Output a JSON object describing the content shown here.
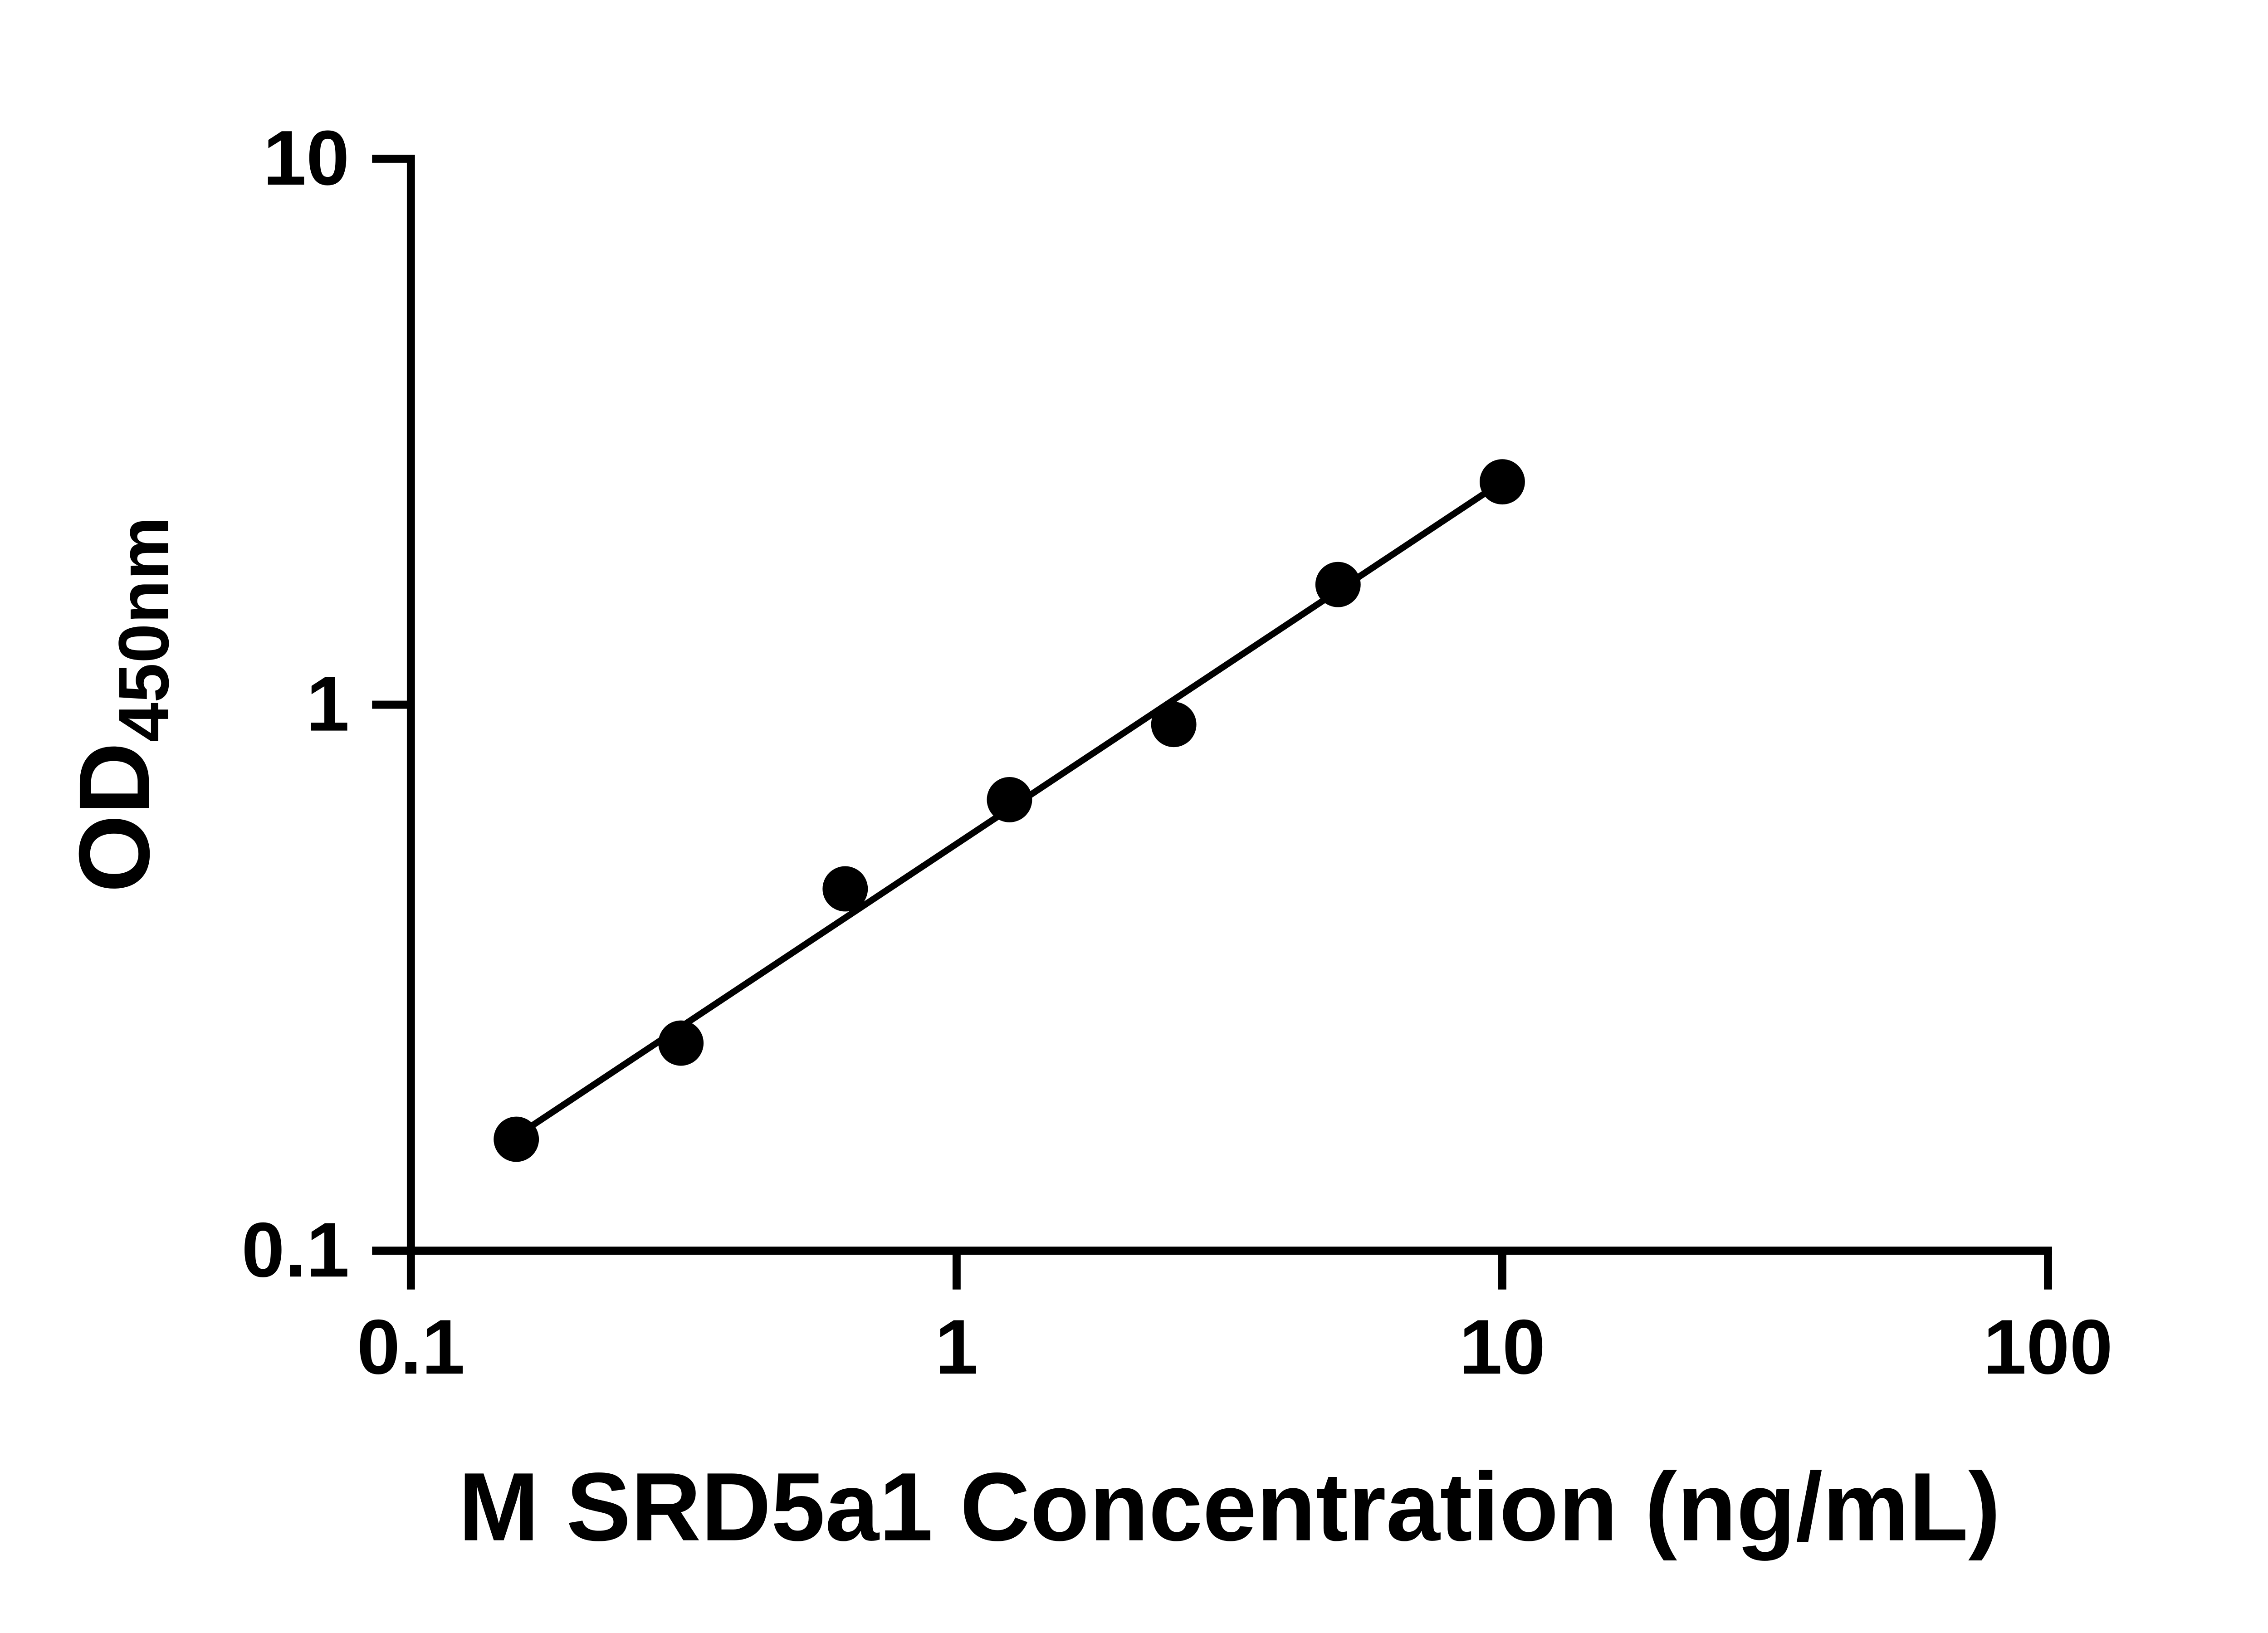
{
  "chart_data": {
    "type": "scatter",
    "title": "",
    "xlabel": "M SRD5a1 Concentration (ng/mL)",
    "ylabel": "OD",
    "ylabel_subscript": "450nm",
    "x": [
      0.156,
      0.3125,
      0.625,
      1.25,
      2.5,
      5,
      10
    ],
    "y": [
      0.16,
      0.24,
      0.46,
      0.67,
      0.92,
      1.66,
      2.56
    ],
    "xscale": "log",
    "yscale": "log",
    "xlim": [
      0.1,
      100
    ],
    "ylim": [
      0.1,
      10
    ],
    "x_tick_labels": [
      "0.1",
      "1",
      "10",
      "100"
    ],
    "x_tick_values": [
      0.1,
      1,
      10,
      100
    ],
    "y_tick_labels": [
      "0.1",
      "1",
      "10"
    ],
    "y_tick_values": [
      0.1,
      1,
      10
    ],
    "grid": false,
    "legend": false,
    "trendline": true,
    "marker_color": "#000000",
    "line_color": "#000000",
    "axis_color": "#000000"
  }
}
